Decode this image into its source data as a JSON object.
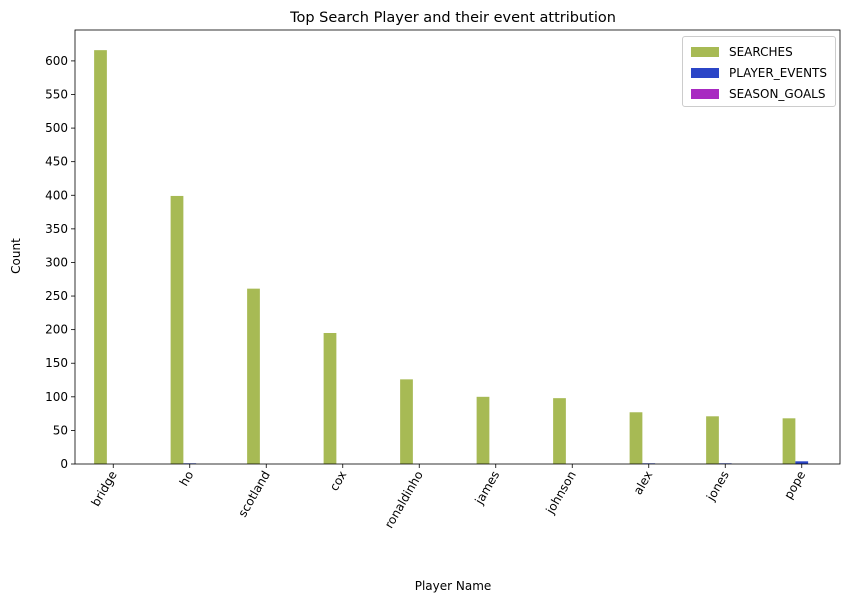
{
  "chart_data": {
    "type": "bar",
    "title": "Top Search Player and their event attribution",
    "xlabel": "Player Name",
    "ylabel": "Count",
    "categories": [
      "bridge",
      "ho",
      "scotland",
      "cox",
      "ronaldinho",
      "james",
      "johnson",
      "alex",
      "jones",
      "pope"
    ],
    "series": [
      {
        "name": "SEARCHES",
        "color": "#a7ba54",
        "values": [
          616,
          399,
          261,
          195,
          126,
          100,
          98,
          77,
          71,
          68
        ]
      },
      {
        "name": "PLAYER_EVENTS",
        "color": "#2b45c7",
        "values": [
          0,
          1,
          0,
          0,
          0,
          0,
          0,
          1,
          1,
          4
        ]
      },
      {
        "name": "SEASON_GOALS",
        "color": "#a829c1",
        "values": [
          0,
          0,
          0,
          0,
          0,
          0,
          0,
          0,
          0,
          0
        ]
      }
    ],
    "yticks": [
      0,
      50,
      100,
      150,
      200,
      250,
      300,
      350,
      400,
      450,
      500,
      550,
      600
    ],
    "ylim": [
      0,
      646
    ],
    "legend_position": "top-right",
    "grid": false
  }
}
